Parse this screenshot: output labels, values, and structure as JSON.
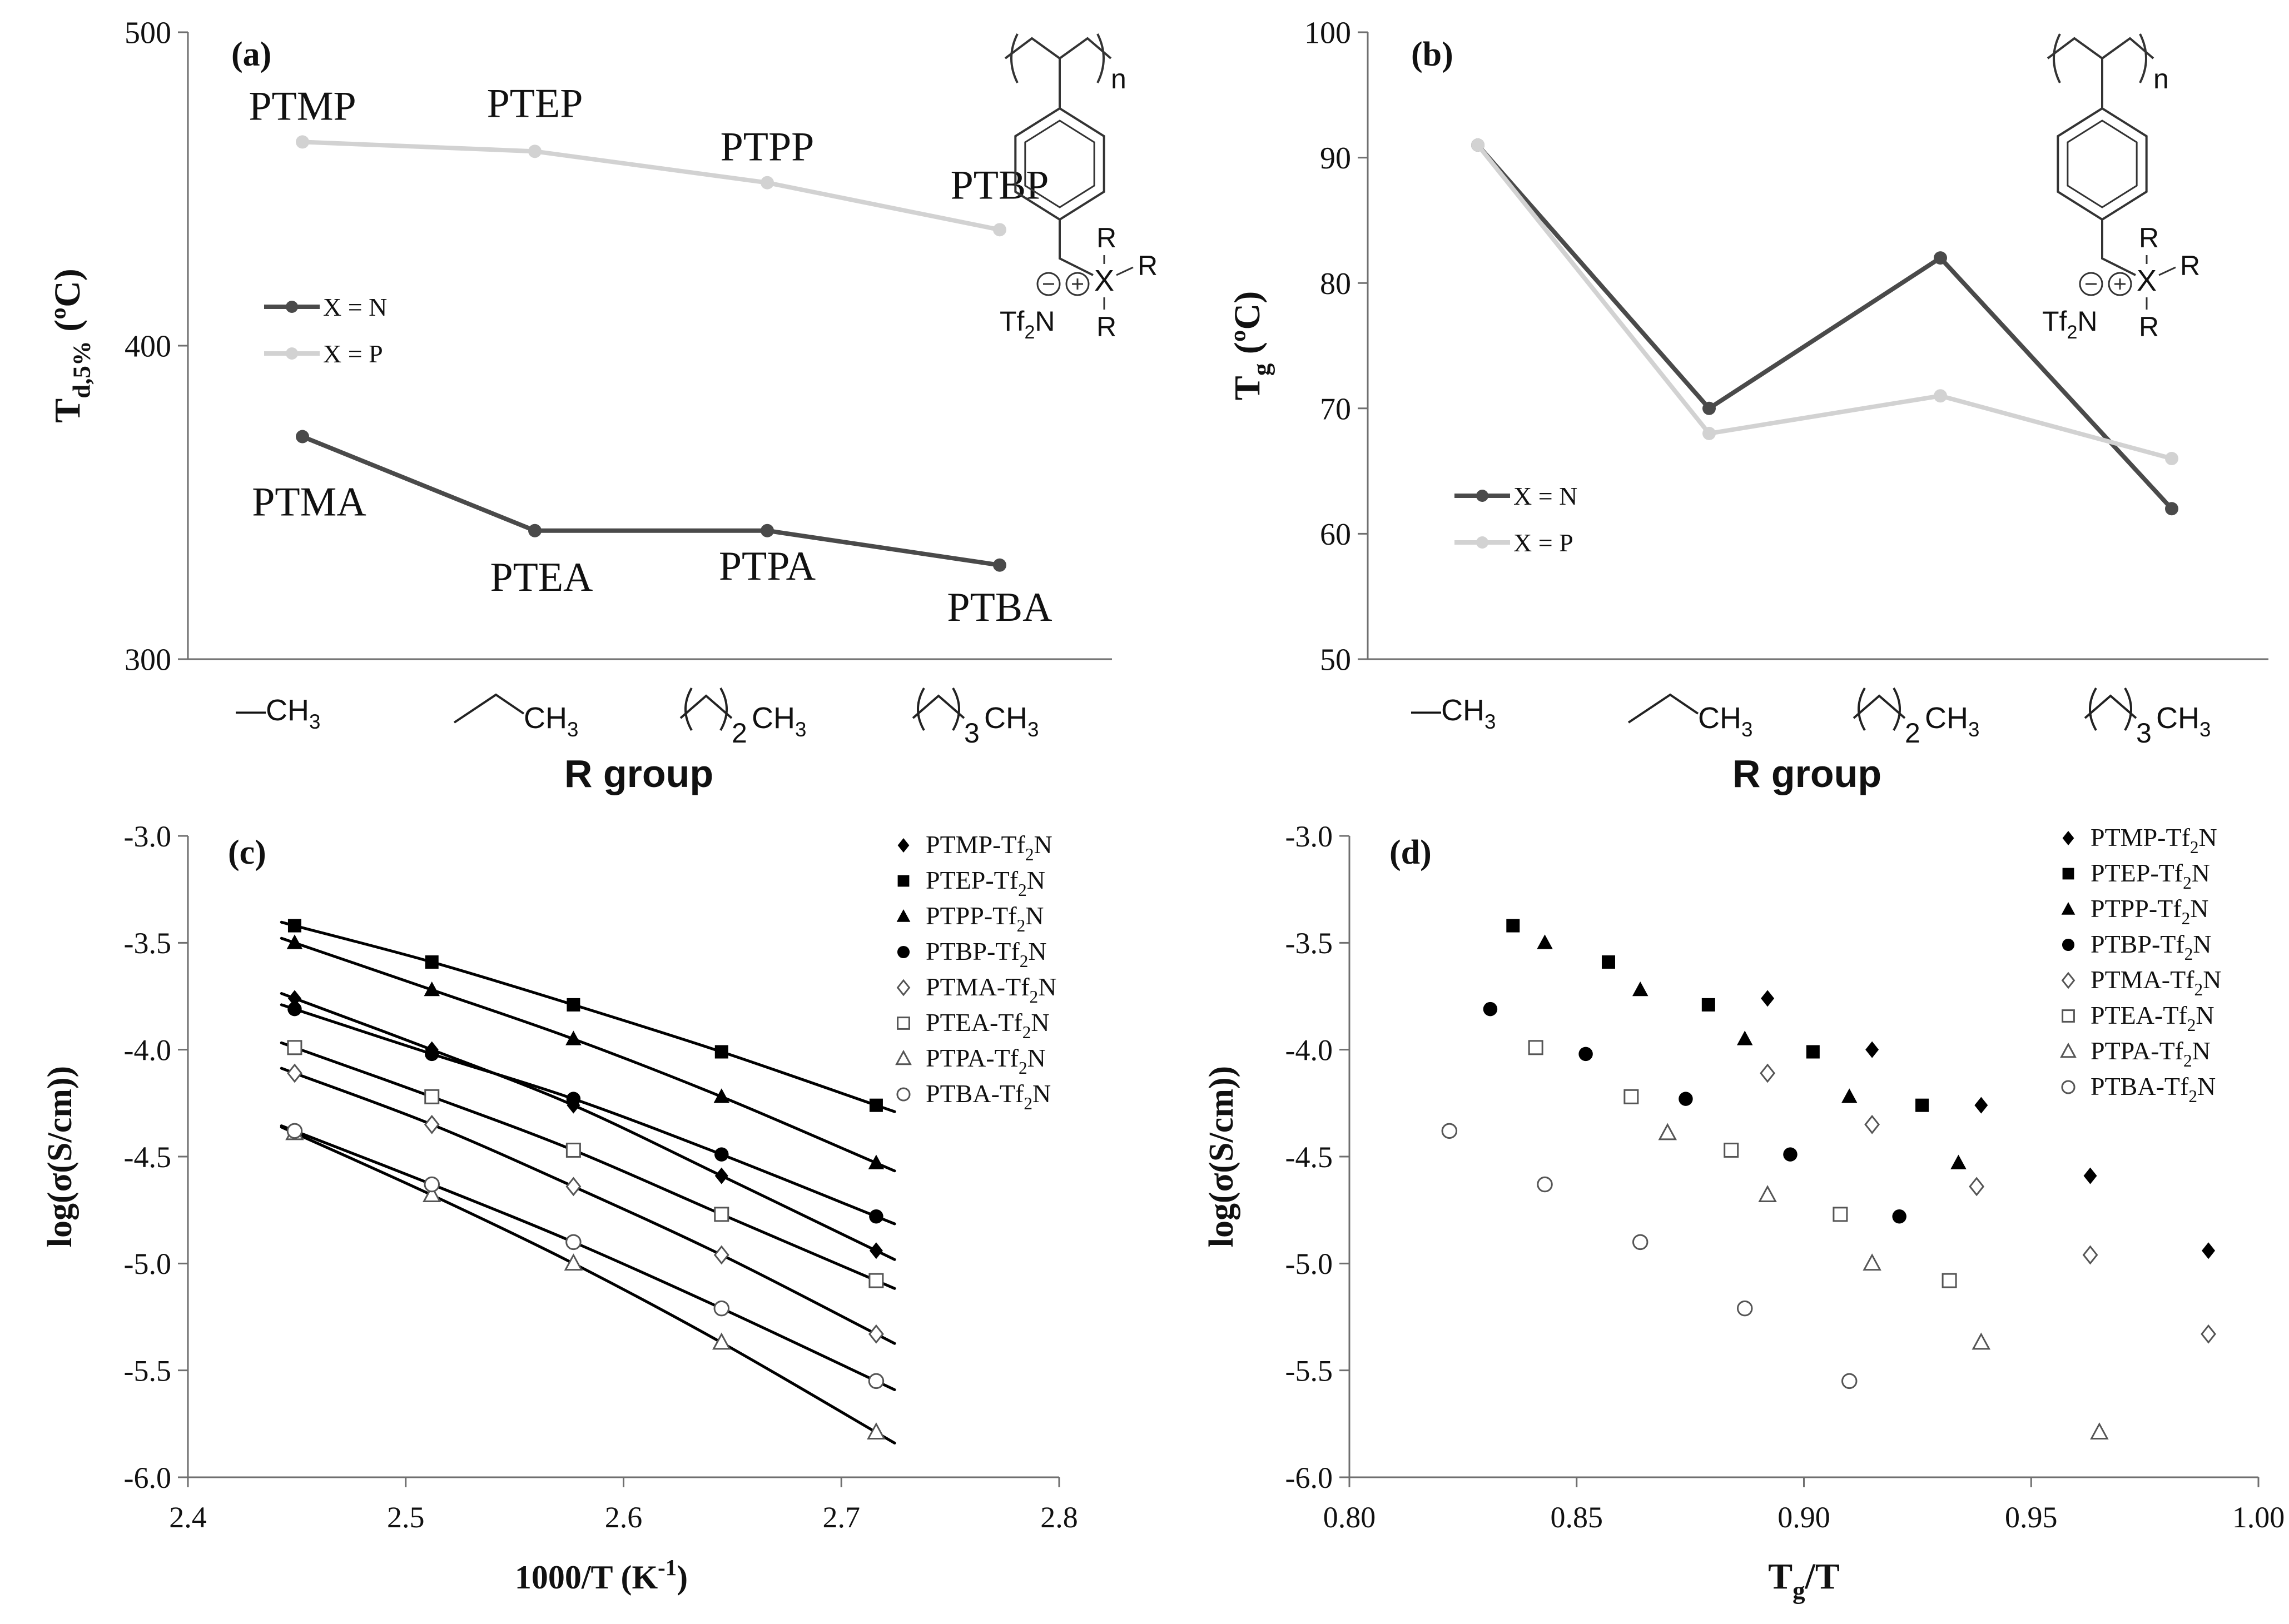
{
  "figure_colors": {
    "n_series": "#4a4a4a",
    "p_series": "#d2d2d2",
    "axis": "#6f6f6f",
    "fit": "#000000",
    "text": "#111111"
  },
  "chart_data": [
    {
      "panel": "(a)",
      "type": "line",
      "xlabel": "R group",
      "ylabel_main": "T",
      "ylabel_sub": "d,5%",
      "ylabel_unit": " (ºC)",
      "ylim": [
        300,
        500
      ],
      "yticks": [
        "300",
        "400",
        "500"
      ],
      "categories": [
        "—CH₃",
        "ethyl",
        "propyl",
        "butyl"
      ],
      "r_group_labels": [
        {
          "prefix": "—CH",
          "sub": "3",
          "count": ""
        },
        {
          "prefix": "",
          "sub": "3",
          "count": ""
        },
        {
          "prefix": "",
          "sub": "3",
          "count": "2"
        },
        {
          "prefix": "",
          "sub": "3",
          "count": "3"
        }
      ],
      "series": [
        {
          "name": "X = N",
          "values": [
            371,
            341,
            341,
            330
          ],
          "point_labels": [
            "PTMA",
            "PTEA",
            "PTPA",
            "PTBA"
          ]
        },
        {
          "name": "X = P",
          "values": [
            465,
            462,
            452,
            437
          ],
          "point_labels": [
            "PTMP",
            "PTEP",
            "PTPP",
            "PTBP"
          ]
        }
      ],
      "legend": "middle-left",
      "structure_labels": {
        "n": "n",
        "r": "R",
        "x": "X",
        "counterion": "Tf",
        "counterion_sub": "2",
        "counterion_tail": "N"
      }
    },
    {
      "panel": "(b)",
      "type": "line",
      "xlabel": "R group",
      "ylabel_main": "T",
      "ylabel_sub": "g",
      "ylabel_unit": " (ºC)",
      "ylim": [
        50,
        100
      ],
      "yticks": [
        "50",
        "60",
        "70",
        "80",
        "90",
        "100"
      ],
      "categories": [
        "—CH₃",
        "ethyl",
        "propyl",
        "butyl"
      ],
      "series": [
        {
          "name": "X = N",
          "values": [
            91,
            70,
            82,
            62
          ]
        },
        {
          "name": "X = P",
          "values": [
            91,
            68,
            71,
            66
          ]
        }
      ],
      "legend": "bottom-left"
    },
    {
      "panel": "(c)",
      "type": "scatter",
      "xlabel": "1000/T (K",
      "xlabel_sup": "-1",
      "xlabel_end": ")",
      "ylabel": "log(σ(S/cm))",
      "xlim": [
        2.4,
        2.8
      ],
      "ylim": [
        -6.0,
        -3.0
      ],
      "xticks": [
        "2.4",
        "2.5",
        "2.6",
        "2.7",
        "2.8"
      ],
      "yticks": [
        "-3.0",
        "-3.5",
        "-4.0",
        "-4.5",
        "-5.0",
        "-5.5",
        "-6.0"
      ],
      "x": [
        2.449,
        2.512,
        2.577,
        2.645,
        2.716
      ],
      "series": [
        {
          "name": "PTMP-Tf",
          "sub": "2",
          "tail": "N",
          "marker": "diamond-filled",
          "values": [
            -3.76,
            -4.0,
            -4.26,
            -4.59,
            -4.94
          ]
        },
        {
          "name": "PTEP-Tf",
          "sub": "2",
          "tail": "N",
          "marker": "square-filled",
          "values": [
            -3.42,
            -3.59,
            -3.79,
            -4.01,
            -4.26
          ]
        },
        {
          "name": "PTPP-Tf",
          "sub": "2",
          "tail": "N",
          "marker": "triangle-filled",
          "values": [
            -3.5,
            -3.72,
            -3.95,
            -4.22,
            -4.53
          ]
        },
        {
          "name": "PTBP-Tf",
          "sub": "2",
          "tail": "N",
          "marker": "circle-filled",
          "values": [
            -3.81,
            -4.02,
            -4.23,
            -4.49,
            -4.78
          ]
        },
        {
          "name": "PTMA-Tf",
          "sub": "2",
          "tail": "N",
          "marker": "diamond-open",
          "values": [
            -4.11,
            -4.35,
            -4.64,
            -4.96,
            -5.33
          ]
        },
        {
          "name": "PTEA-Tf",
          "sub": "2",
          "tail": "N",
          "marker": "square-open",
          "values": [
            -3.99,
            -4.22,
            -4.47,
            -4.77,
            -5.08
          ]
        },
        {
          "name": "PTPA-Tf",
          "sub": "2",
          "tail": "N",
          "marker": "triangle-open",
          "values": [
            -4.39,
            -4.68,
            -5.0,
            -5.37,
            -5.79
          ]
        },
        {
          "name": "PTBA-Tf",
          "sub": "2",
          "tail": "N",
          "marker": "circle-open",
          "values": [
            -4.38,
            -4.63,
            -4.9,
            -5.21,
            -5.55
          ]
        }
      ],
      "legend": "top-right"
    },
    {
      "panel": "(d)",
      "type": "scatter",
      "xlabel_main": "T",
      "xlabel_sub": "g",
      "xlabel_tail": "/T",
      "ylabel": "log(σ(S/cm))",
      "xlim": [
        0.8,
        1.0
      ],
      "ylim": [
        -6.0,
        -3.0
      ],
      "xticks": [
        "0.80",
        "0.85",
        "0.90",
        "0.95",
        "1.00"
      ],
      "yticks": [
        "-3.0",
        "-3.5",
        "-4.0",
        "-4.5",
        "-5.0",
        "-5.5",
        "-6.0"
      ],
      "series": [
        {
          "name": "PTMP-Tf",
          "sub": "2",
          "tail": "N",
          "marker": "diamond-filled",
          "x": [
            0.892,
            0.915,
            0.939,
            0.963,
            0.989
          ],
          "values": [
            -3.76,
            -4.0,
            -4.26,
            -4.59,
            -4.94
          ]
        },
        {
          "name": "PTEP-Tf",
          "sub": "2",
          "tail": "N",
          "marker": "square-filled",
          "x": [
            0.836,
            0.857,
            0.879,
            0.902,
            0.926
          ],
          "values": [
            -3.42,
            -3.59,
            -3.79,
            -4.01,
            -4.26
          ]
        },
        {
          "name": "PTPP-Tf",
          "sub": "2",
          "tail": "N",
          "marker": "triangle-filled",
          "x": [
            0.843,
            0.864,
            0.887,
            0.91,
            0.934
          ],
          "values": [
            -3.5,
            -3.72,
            -3.95,
            -4.22,
            -4.53
          ]
        },
        {
          "name": "PTBP-Tf",
          "sub": "2",
          "tail": "N",
          "marker": "circle-filled",
          "x": [
            0.831,
            0.852,
            0.874,
            0.897,
            0.921
          ],
          "values": [
            -3.81,
            -4.02,
            -4.23,
            -4.49,
            -4.78
          ]
        },
        {
          "name": "PTMA-Tf",
          "sub": "2",
          "tail": "N",
          "marker": "diamond-open",
          "x": [
            0.892,
            0.915,
            0.938,
            0.963,
            0.989
          ],
          "values": [
            -4.11,
            -4.35,
            -4.64,
            -4.96,
            -5.33
          ]
        },
        {
          "name": "PTEA-Tf",
          "sub": "2",
          "tail": "N",
          "marker": "square-open",
          "x": [
            0.841,
            0.862,
            0.884,
            0.908,
            0.932
          ],
          "values": [
            -3.99,
            -4.22,
            -4.47,
            -4.77,
            -5.08
          ]
        },
        {
          "name": "PTPA-Tf",
          "sub": "2",
          "tail": "N",
          "marker": "triangle-open",
          "x": [
            0.87,
            0.892,
            0.915,
            0.939,
            0.965
          ],
          "values": [
            -4.39,
            -4.68,
            -5.0,
            -5.37,
            -5.79
          ]
        },
        {
          "name": "PTBA-Tf",
          "sub": "2",
          "tail": "N",
          "marker": "circle-open",
          "x": [
            0.822,
            0.843,
            0.864,
            0.887,
            0.91
          ],
          "values": [
            -4.38,
            -4.63,
            -4.9,
            -5.21,
            -5.55
          ]
        }
      ],
      "legend": "top-right"
    }
  ]
}
